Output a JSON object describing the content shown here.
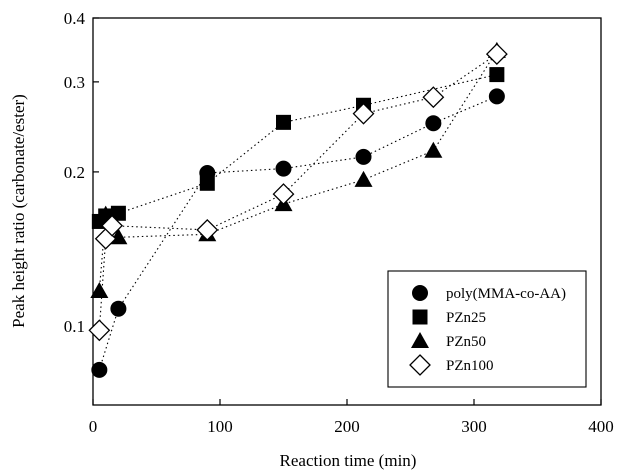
{
  "chart_data": {
    "type": "scatter",
    "title": "",
    "xlabel": "Reaction time (min)",
    "ylabel": "Peak height ratio (carbonate/ester)",
    "xlim": [
      0,
      400
    ],
    "ylim": [
      0.07,
      0.4
    ],
    "yscale": "log",
    "grid": false,
    "legend_position": "bottom-right",
    "x_ticks": [
      0,
      100,
      200,
      300,
      400
    ],
    "x_tick_labels": [
      "0",
      "100",
      "200",
      "300",
      "400"
    ],
    "y_ticks": [
      0.1,
      0.2,
      0.3,
      0.4
    ],
    "y_tick_labels": [
      "0.1",
      "0.2",
      "0.3",
      "0.4"
    ],
    "connector_style": "dotted",
    "series": [
      {
        "name": "poly(MMA-co-AA)",
        "marker": "circle-filled",
        "x": [
          5,
          20,
          90,
          150,
          213,
          268,
          318
        ],
        "y": [
          0.082,
          0.108,
          0.199,
          0.203,
          0.214,
          0.249,
          0.281
        ]
      },
      {
        "name": "PZn25",
        "marker": "square-filled",
        "x": [
          5,
          10,
          20,
          90,
          150,
          213,
          318
        ],
        "y": [
          0.16,
          0.164,
          0.166,
          0.19,
          0.25,
          0.27,
          0.31
        ]
      },
      {
        "name": "PZn50",
        "marker": "triangle-filled",
        "x": [
          5,
          10,
          20,
          90,
          150,
          213,
          268,
          318
        ],
        "y": [
          0.117,
          0.165,
          0.149,
          0.151,
          0.173,
          0.193,
          0.22,
          0.345
        ]
      },
      {
        "name": "PZn100",
        "marker": "diamond-open",
        "x": [
          5,
          10,
          15,
          90,
          150,
          213,
          268,
          318
        ],
        "y": [
          0.098,
          0.148,
          0.157,
          0.154,
          0.181,
          0.26,
          0.28,
          0.34
        ]
      }
    ]
  }
}
